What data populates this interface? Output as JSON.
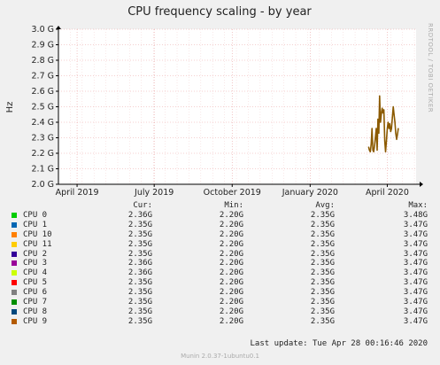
{
  "chart_data": {
    "type": "line",
    "title": "CPU frequency scaling - by year",
    "ylabel": "Hz",
    "side_label": "RRDTOOL / TOBI OETIKER",
    "ylim": [
      2.0,
      3.0
    ],
    "y_ticks": [
      "2.0 G",
      "2.1 G",
      "2.2 G",
      "2.3 G",
      "2.4 G",
      "2.5 G",
      "2.6 G",
      "2.7 G",
      "2.8 G",
      "2.9 G",
      "3.0 G"
    ],
    "y_tick_values": [
      2.0,
      2.1,
      2.2,
      2.3,
      2.4,
      2.5,
      2.6,
      2.7,
      2.8,
      2.9,
      3.0
    ],
    "x_range": [
      "2019-03-10",
      "2020-05-05"
    ],
    "x_ticks": [
      {
        "label": "April 2019",
        "date": "2019-04-01"
      },
      {
        "label": "July 2019",
        "date": "2019-07-01"
      },
      {
        "label": "October 2019",
        "date": "2019-10-01"
      },
      {
        "label": "January 2020",
        "date": "2020-01-01"
      },
      {
        "label": "April 2020",
        "date": "2020-04-01"
      }
    ],
    "grid": true,
    "series_color": "#8B5A00",
    "series": [
      {
        "name": "CPU 0",
        "points": [
          {
            "x": "2020-03-10",
            "y": 2.24
          },
          {
            "x": "2020-03-11",
            "y": 2.22
          },
          {
            "x": "2020-03-12",
            "y": 2.21
          },
          {
            "x": "2020-03-13",
            "y": 2.26
          },
          {
            "x": "2020-03-14",
            "y": 2.36
          },
          {
            "x": "2020-03-15",
            "y": 2.22
          },
          {
            "x": "2020-03-16",
            "y": 2.21
          },
          {
            "x": "2020-03-17",
            "y": 2.25
          },
          {
            "x": "2020-03-18",
            "y": 2.3
          },
          {
            "x": "2020-03-19",
            "y": 2.36
          },
          {
            "x": "2020-03-20",
            "y": 2.22
          },
          {
            "x": "2020-03-21",
            "y": 2.42
          },
          {
            "x": "2020-03-22",
            "y": 2.33
          },
          {
            "x": "2020-03-23",
            "y": 2.57
          },
          {
            "x": "2020-03-24",
            "y": 2.4
          },
          {
            "x": "2020-03-25",
            "y": 2.45
          },
          {
            "x": "2020-03-26",
            "y": 2.49
          },
          {
            "x": "2020-03-27",
            "y": 2.46
          },
          {
            "x": "2020-03-28",
            "y": 2.48
          },
          {
            "x": "2020-03-29",
            "y": 2.28
          },
          {
            "x": "2020-03-30",
            "y": 2.21
          },
          {
            "x": "2020-03-31",
            "y": 2.28
          },
          {
            "x": "2020-04-01",
            "y": 2.36
          },
          {
            "x": "2020-04-02",
            "y": 2.4
          },
          {
            "x": "2020-04-03",
            "y": 2.36
          },
          {
            "x": "2020-04-04",
            "y": 2.39
          },
          {
            "x": "2020-04-05",
            "y": 2.34
          },
          {
            "x": "2020-04-06",
            "y": 2.36
          },
          {
            "x": "2020-04-07",
            "y": 2.43
          },
          {
            "x": "2020-04-08",
            "y": 2.5
          },
          {
            "x": "2020-04-09",
            "y": 2.45
          },
          {
            "x": "2020-04-10",
            "y": 2.4
          },
          {
            "x": "2020-04-11",
            "y": 2.33
          },
          {
            "x": "2020-04-12",
            "y": 2.29
          },
          {
            "x": "2020-04-13",
            "y": 2.32
          },
          {
            "x": "2020-04-14",
            "y": 2.36
          }
        ]
      }
    ]
  },
  "legend": {
    "headers": {
      "cur": "Cur:",
      "min": "Min:",
      "avg": "Avg:",
      "max": "Max:"
    },
    "rows": [
      {
        "name": "CPU 0",
        "color": "#00cc00",
        "cur": "2.36G",
        "min": "2.20G",
        "avg": "2.35G",
        "max": "3.48G"
      },
      {
        "name": "CPU 1",
        "color": "#0066b3",
        "cur": "2.35G",
        "min": "2.20G",
        "avg": "2.35G",
        "max": "3.47G"
      },
      {
        "name": "CPU 10",
        "color": "#ff8000",
        "cur": "2.35G",
        "min": "2.20G",
        "avg": "2.35G",
        "max": "3.47G"
      },
      {
        "name": "CPU 11",
        "color": "#ffcc00",
        "cur": "2.35G",
        "min": "2.20G",
        "avg": "2.35G",
        "max": "3.47G"
      },
      {
        "name": "CPU 2",
        "color": "#330099",
        "cur": "2.35G",
        "min": "2.20G",
        "avg": "2.35G",
        "max": "3.47G"
      },
      {
        "name": "CPU 3",
        "color": "#990099",
        "cur": "2.36G",
        "min": "2.20G",
        "avg": "2.35G",
        "max": "3.47G"
      },
      {
        "name": "CPU 4",
        "color": "#ccff00",
        "cur": "2.36G",
        "min": "2.20G",
        "avg": "2.35G",
        "max": "3.47G"
      },
      {
        "name": "CPU 5",
        "color": "#ff0000",
        "cur": "2.35G",
        "min": "2.20G",
        "avg": "2.35G",
        "max": "3.47G"
      },
      {
        "name": "CPU 6",
        "color": "#808080",
        "cur": "2.35G",
        "min": "2.20G",
        "avg": "2.35G",
        "max": "3.47G"
      },
      {
        "name": "CPU 7",
        "color": "#008f00",
        "cur": "2.35G",
        "min": "2.20G",
        "avg": "2.35G",
        "max": "3.47G"
      },
      {
        "name": "CPU 8",
        "color": "#00487d",
        "cur": "2.35G",
        "min": "2.20G",
        "avg": "2.35G",
        "max": "3.47G"
      },
      {
        "name": "CPU 9",
        "color": "#b35a00",
        "cur": "2.35G",
        "min": "2.20G",
        "avg": "2.35G",
        "max": "3.47G"
      }
    ]
  },
  "last_update": "Last update: Tue Apr 28 00:16:46 2020",
  "footer": "Munin 2.0.37-1ubuntu0.1"
}
